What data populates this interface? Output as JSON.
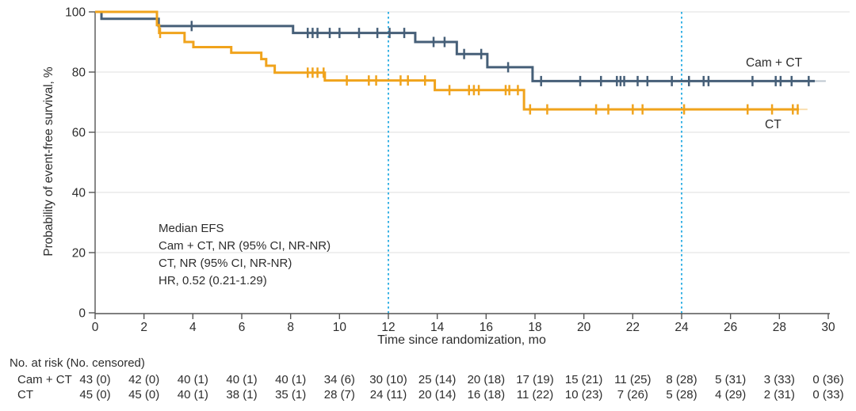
{
  "figure": {
    "y_axis": {
      "title": "Probability of event-free survival, %",
      "ticks": [
        0,
        20,
        40,
        60,
        80,
        100
      ],
      "range": [
        0,
        100
      ]
    },
    "x_axis": {
      "title": "Time since randomization, mo",
      "ticks": [
        0,
        2,
        4,
        6,
        8,
        10,
        12,
        14,
        16,
        18,
        20,
        22,
        24,
        26,
        28,
        30
      ],
      "range": [
        0,
        30
      ]
    },
    "annotation": {
      "lines": [
        "Median EFS",
        "Cam + CT, NR (95% CI, NR-NR)",
        "CT, NR (95% CI, NR-NR)",
        "HR, 0.52 (0.21-1.29)"
      ]
    },
    "colors": {
      "cam_ct": "#465f78",
      "ct": "#f0a31c",
      "reference_line": "#3ab3e5",
      "grid": "#eaeaea",
      "axis": "#555555",
      "text": "#2d2d2d"
    }
  },
  "chart_data": {
    "type": "line",
    "subtype": "kaplan-meier-step",
    "title": "",
    "xlabel": "Time since randomization, mo",
    "ylabel": "Probability of event-free survival, %",
    "xlim": [
      0,
      30
    ],
    "ylim": [
      0,
      100
    ],
    "grid": "horizontal",
    "reference_lines_x": [
      12,
      24
    ],
    "series": [
      {
        "name": "Cam + CT",
        "color": "#465f78",
        "steps": [
          [
            0,
            100
          ],
          [
            0.26,
            97.7
          ],
          [
            2.6,
            95.3
          ],
          [
            8.1,
            93.0
          ],
          [
            13.1,
            90.0
          ],
          [
            14.8,
            86.0
          ],
          [
            16.05,
            81.6
          ],
          [
            17.9,
            77.0
          ]
        ],
        "end_x": 29.45,
        "fade_end_x": 29.9,
        "censor_x": [
          3.95,
          8.7,
          8.9,
          9.1,
          9.6,
          10.0,
          10.8,
          11.55,
          12.05,
          12.65,
          13.85,
          14.3,
          15.1,
          15.8,
          16.9,
          18.25,
          19.85,
          20.7,
          21.35,
          21.5,
          21.65,
          22.2,
          22.6,
          23.6,
          24.3,
          24.9,
          25.1,
          26.9,
          27.85,
          28.05,
          28.5,
          29.2
        ]
      },
      {
        "name": "CT",
        "color": "#f0a31c",
        "steps": [
          [
            0,
            100
          ],
          [
            2.53,
            95.6
          ],
          [
            2.62,
            93.0
          ],
          [
            3.66,
            90.0
          ],
          [
            4.02,
            88.3
          ],
          [
            5.57,
            86.4
          ],
          [
            6.8,
            84.3
          ],
          [
            7.0,
            82.1
          ],
          [
            7.35,
            79.8
          ],
          [
            9.4,
            77.2
          ],
          [
            13.9,
            74.0
          ],
          [
            17.55,
            67.6
          ]
        ],
        "end_x": 28.8,
        "fade_end_x": 29.15,
        "censor_x": [
          2.66,
          8.7,
          8.9,
          9.1,
          9.35,
          10.3,
          11.2,
          11.5,
          12.5,
          12.8,
          13.5,
          14.5,
          15.3,
          15.5,
          15.7,
          16.8,
          16.95,
          17.3,
          17.8,
          18.5,
          20.5,
          21.0,
          22.0,
          22.4,
          24.1,
          26.7,
          27.7,
          28.55,
          28.75
        ]
      }
    ]
  },
  "risk_table": {
    "header": "No. at risk (No. censored)",
    "time_points": [
      0,
      2,
      4,
      6,
      8,
      10,
      12,
      14,
      16,
      18,
      20,
      22,
      24,
      26,
      28,
      30
    ],
    "rows": [
      {
        "label": "Cam + CT",
        "values": [
          "43 (0)",
          "42 (0)",
          "40 (1)",
          "40 (1)",
          "40 (1)",
          "34 (6)",
          "30 (10)",
          "25 (14)",
          "20 (18)",
          "17 (19)",
          "15 (21)",
          "11 (25)",
          "8 (28)",
          "5 (31)",
          "3 (33)",
          "0 (36)"
        ]
      },
      {
        "label": "CT",
        "values": [
          "45 (0)",
          "45 (0)",
          "40 (1)",
          "38 (1)",
          "35 (1)",
          "28 (7)",
          "24 (11)",
          "20 (14)",
          "16 (18)",
          "11 (22)",
          "10 (23)",
          "7 (26)",
          "5 (28)",
          "4 (29)",
          "2 (31)",
          "0 (33)"
        ]
      }
    ]
  }
}
